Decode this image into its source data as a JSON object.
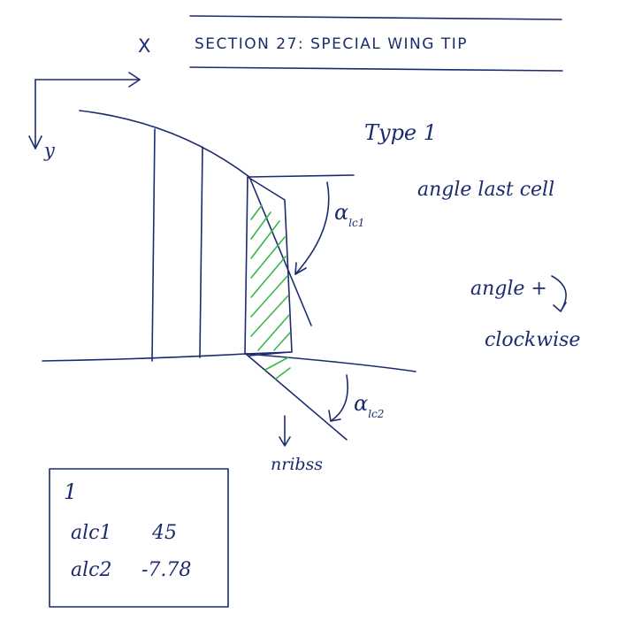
{
  "title": "SECTION 27: SPECIAL WING TIP",
  "axes": {
    "x_label": "X",
    "y_label": "y"
  },
  "type_label": "Type 1",
  "angle_last_cell_label": "angle last cell",
  "sign_note": {
    "line1": "angle +",
    "line2": "clockwise"
  },
  "angle1": {
    "symbol": "α",
    "subscript": "lc1"
  },
  "angle2": {
    "symbol": "α",
    "subscript": "lc2"
  },
  "nribss_label": "nribss",
  "params_box": {
    "type_value": "1",
    "rows": [
      {
        "name": "alc1",
        "value": "45"
      },
      {
        "name": "alc2",
        "value": "-7.78"
      }
    ]
  },
  "colors": {
    "ink": "#1c2a6e",
    "hatch": "#36b84a"
  }
}
